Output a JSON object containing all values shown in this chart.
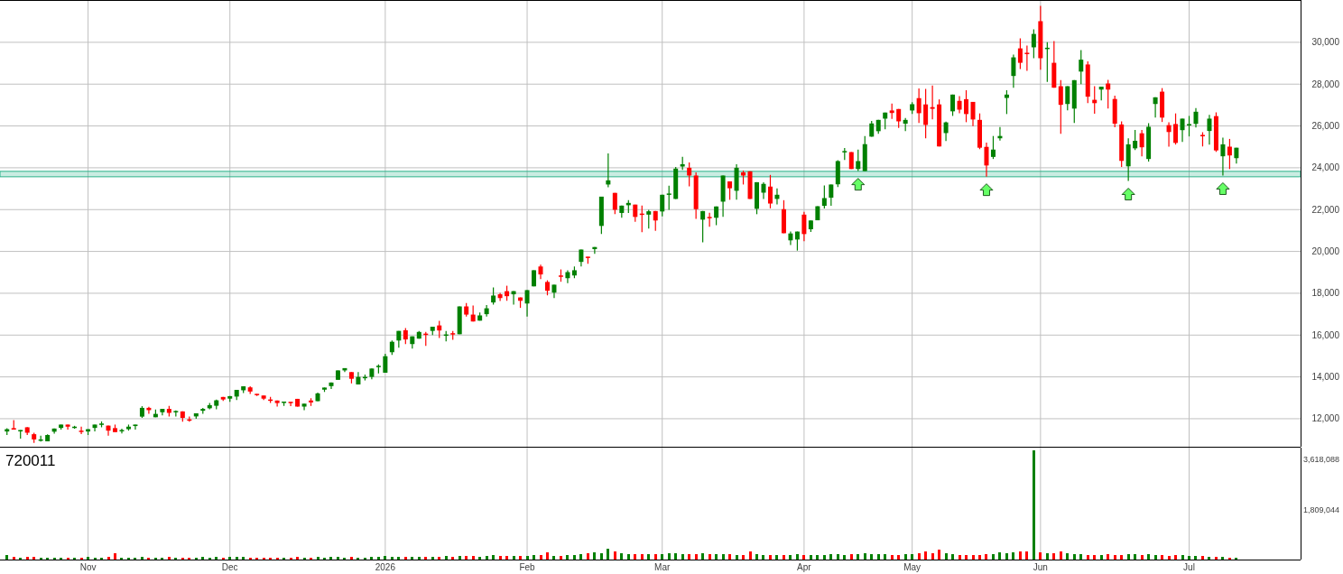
{
  "chart_data": [
    {
      "type": "candlestick",
      "grid": "y",
      "tick_labels": "y",
      "categories": [
        null,
        null,
        null,
        null,
        null,
        null,
        null,
        null,
        null,
        null,
        null,
        null,
        null,
        null,
        null,
        null,
        null,
        null,
        null,
        null,
        null,
        null,
        null,
        null,
        null,
        null,
        null,
        null,
        null,
        null,
        null,
        null,
        null,
        null,
        null,
        null,
        null,
        null,
        null,
        null,
        null,
        null,
        null,
        null,
        null,
        null,
        null,
        null,
        null,
        null,
        null,
        null,
        null,
        null,
        null,
        null,
        null,
        null,
        null,
        null,
        null,
        null,
        null,
        null,
        null,
        null,
        null,
        null,
        null,
        null,
        null,
        null,
        null,
        null,
        null,
        null,
        null,
        null,
        null,
        null,
        null,
        null,
        null,
        null,
        null,
        null,
        null,
        null,
        null,
        null,
        null,
        null,
        null,
        null,
        null,
        null,
        null,
        null,
        null,
        null,
        null,
        null,
        null,
        null,
        null,
        null,
        null,
        null,
        null,
        null,
        null,
        null,
        null,
        null,
        null,
        null,
        null,
        null,
        null,
        null,
        null,
        null,
        null,
        null,
        null,
        null,
        null,
        null,
        null,
        null,
        null,
        null,
        null,
        null,
        null,
        null,
        null,
        null,
        null,
        null,
        null,
        null,
        null,
        null,
        null,
        null,
        null,
        null,
        null,
        null,
        null,
        null,
        null,
        null,
        null,
        null,
        null,
        null,
        null,
        null,
        null,
        null,
        null,
        null,
        null,
        null,
        null,
        null,
        null,
        null,
        null,
        null,
        null,
        null,
        null,
        null,
        null,
        null,
        null,
        null,
        null,
        null,
        null,
        null,
        null,
        null,
        null,
        null,
        null,
        null,
        null,
        null
      ],
      "ohlc": [
        [
          11390,
          11550,
          11220,
          11500
        ],
        [
          11550,
          11930,
          11480,
          11480
        ],
        [
          11450,
          11460,
          11050,
          11460
        ],
        [
          11590,
          11600,
          11220,
          11330
        ],
        [
          11260,
          11330,
          10840,
          11010
        ],
        [
          10970,
          11190,
          10910,
          11010
        ],
        [
          10920,
          11250,
          10920,
          11220
        ],
        [
          11380,
          11530,
          11290,
          11530
        ],
        [
          11560,
          11720,
          11480,
          11720
        ],
        [
          11720,
          11720,
          11480,
          11620
        ],
        [
          11570,
          11660,
          11520,
          11620
        ],
        [
          11430,
          11620,
          11260,
          11400
        ],
        [
          11390,
          11500,
          11220,
          11500
        ],
        [
          11560,
          11720,
          11390,
          11720
        ],
        [
          11740,
          11870,
          11590,
          11770
        ],
        [
          11670,
          11670,
          11190,
          11430
        ],
        [
          11550,
          11720,
          11360,
          11360
        ],
        [
          11430,
          11520,
          11300,
          11460
        ],
        [
          11500,
          11720,
          11430,
          11620
        ],
        [
          11650,
          11720,
          11480,
          11720
        ],
        [
          12100,
          12600,
          12040,
          12520
        ],
        [
          12520,
          12570,
          12240,
          12410
        ],
        [
          12070,
          12440,
          12070,
          12230
        ],
        [
          12310,
          12470,
          12160,
          12470
        ],
        [
          12470,
          12610,
          12110,
          12280
        ],
        [
          12340,
          12400,
          12110,
          12370
        ],
        [
          12350,
          12350,
          11860,
          12040
        ],
        [
          11970,
          12110,
          11860,
          11940
        ],
        [
          12110,
          12260,
          12000,
          12260
        ],
        [
          12380,
          12520,
          12240,
          12470
        ],
        [
          12500,
          12750,
          12450,
          12650
        ],
        [
          12620,
          12920,
          12450,
          12880
        ],
        [
          13040,
          13040,
          12850,
          12920
        ],
        [
          12960,
          13090,
          12810,
          13080
        ],
        [
          13060,
          13380,
          12890,
          13380
        ],
        [
          13360,
          13550,
          13230,
          13550
        ],
        [
          13500,
          13550,
          13180,
          13300
        ],
        [
          13190,
          13190,
          13090,
          13160
        ],
        [
          13110,
          13110,
          12890,
          12960
        ],
        [
          12920,
          13040,
          12750,
          12890
        ],
        [
          12870,
          12870,
          12580,
          12750
        ],
        [
          12780,
          12820,
          12610,
          12820
        ],
        [
          12810,
          12810,
          12600,
          12780
        ],
        [
          12950,
          12950,
          12580,
          12580
        ],
        [
          12580,
          12720,
          12410,
          12720
        ],
        [
          12870,
          12980,
          12610,
          12780
        ],
        [
          12840,
          13250,
          12840,
          13210
        ],
        [
          13390,
          13490,
          13280,
          13490
        ],
        [
          13560,
          13730,
          13420,
          13730
        ],
        [
          13860,
          14310,
          13860,
          14310
        ],
        [
          14310,
          14420,
          14230,
          14420
        ],
        [
          14230,
          14230,
          13690,
          13910
        ],
        [
          13640,
          14230,
          13640,
          14000
        ],
        [
          13940,
          14110,
          13830,
          14000
        ],
        [
          14000,
          14400,
          13890,
          14400
        ],
        [
          14500,
          14600,
          14170,
          14530
        ],
        [
          14200,
          15110,
          14200,
          14990
        ],
        [
          15180,
          15740,
          15050,
          15680
        ],
        [
          15740,
          16200,
          15400,
          16200
        ],
        [
          16230,
          16330,
          15570,
          15790
        ],
        [
          15570,
          15940,
          15350,
          15940
        ],
        [
          15830,
          16200,
          15830,
          16150
        ],
        [
          16070,
          16150,
          15480,
          16040
        ],
        [
          16200,
          16400,
          16000,
          16400
        ],
        [
          16460,
          16680,
          15860,
          16220
        ],
        [
          16000,
          16200,
          15700,
          16030
        ],
        [
          16090,
          16200,
          15770,
          16060
        ],
        [
          16040,
          17370,
          16040,
          17370
        ],
        [
          17370,
          17530,
          16890,
          16980
        ],
        [
          16980,
          17410,
          16650,
          16650
        ],
        [
          16690,
          17080,
          16690,
          16940
        ],
        [
          17000,
          17440,
          16890,
          17280
        ],
        [
          17560,
          18280,
          17460,
          17890
        ],
        [
          17950,
          18020,
          17630,
          17770
        ],
        [
          18100,
          18360,
          17640,
          17860
        ],
        [
          17950,
          18100,
          17460,
          18100
        ],
        [
          17800,
          17800,
          17300,
          17640
        ],
        [
          17510,
          18150,
          16890,
          18150
        ],
        [
          18330,
          19100,
          18330,
          19100
        ],
        [
          19280,
          19370,
          18680,
          18900
        ],
        [
          18540,
          18620,
          17900,
          18120
        ],
        [
          18030,
          18410,
          17770,
          18410
        ],
        [
          18850,
          19140,
          18550,
          18820
        ],
        [
          18720,
          19100,
          18480,
          19010
        ],
        [
          18850,
          19280,
          18720,
          19100
        ],
        [
          19500,
          20090,
          19280,
          20090
        ],
        [
          19750,
          19750,
          19410,
          19720
        ],
        [
          20110,
          20210,
          19890,
          20210
        ],
        [
          21220,
          22620,
          20830,
          22620
        ],
        [
          23200,
          24690,
          23070,
          23400
        ],
        [
          22800,
          22800,
          21780,
          21990
        ],
        [
          21840,
          22190,
          21610,
          22190
        ],
        [
          22210,
          22450,
          21840,
          22320
        ],
        [
          22240,
          22240,
          21420,
          21650
        ],
        [
          21810,
          22190,
          20920,
          21780
        ],
        [
          21760,
          21990,
          21090,
          21920
        ],
        [
          21930,
          21930,
          20990,
          21480
        ],
        [
          21910,
          22710,
          21680,
          22710
        ],
        [
          22740,
          23140,
          21990,
          22770
        ],
        [
          22510,
          24040,
          22510,
          23960
        ],
        [
          24060,
          24520,
          23900,
          24170
        ],
        [
          24000,
          24260,
          23110,
          23630
        ],
        [
          23630,
          23780,
          21560,
          22020
        ],
        [
          21520,
          21930,
          20430,
          21930
        ],
        [
          21650,
          21850,
          21180,
          21620
        ],
        [
          21610,
          22150,
          21250,
          22150
        ],
        [
          22380,
          23630,
          21650,
          23630
        ],
        [
          23350,
          23350,
          22470,
          23020
        ],
        [
          22900,
          24170,
          22470,
          24000
        ],
        [
          23780,
          23870,
          23200,
          23630
        ],
        [
          23830,
          23830,
          22510,
          22510
        ],
        [
          22040,
          23310,
          21780,
          23310
        ],
        [
          22810,
          23310,
          22510,
          23230
        ],
        [
          23100,
          23660,
          22060,
          22290
        ],
        [
          22510,
          23010,
          22250,
          22710
        ],
        [
          22020,
          22450,
          20870,
          20870
        ],
        [
          20530,
          20950,
          20310,
          20860
        ],
        [
          20570,
          20950,
          20040,
          20950
        ],
        [
          21760,
          21890,
          20490,
          20830
        ],
        [
          21060,
          21480,
          20930,
          21480
        ],
        [
          21490,
          22160,
          21490,
          22160
        ],
        [
          22180,
          23150,
          22050,
          22550
        ],
        [
          22570,
          23200,
          22180,
          23200
        ],
        [
          23210,
          24360,
          23080,
          24320
        ],
        [
          24770,
          24950,
          24370,
          24800
        ],
        [
          24750,
          24750,
          23940,
          23940
        ],
        [
          23940,
          24870,
          23840,
          24320
        ],
        [
          23840,
          25520,
          23840,
          25130
        ],
        [
          25490,
          26240,
          25490,
          26120
        ],
        [
          25750,
          26290,
          25620,
          26290
        ],
        [
          26350,
          26640,
          25840,
          26640
        ],
        [
          26740,
          27070,
          26340,
          26620
        ],
        [
          26810,
          26810,
          25910,
          26220
        ],
        [
          26110,
          26380,
          25750,
          26290
        ],
        [
          26740,
          27140,
          26570,
          27040
        ],
        [
          27330,
          27790,
          26140,
          26610
        ],
        [
          27030,
          27770,
          25410,
          26050
        ],
        [
          26900,
          27930,
          26320,
          26820
        ],
        [
          27030,
          27270,
          25020,
          25020
        ],
        [
          25660,
          26210,
          25280,
          26170
        ],
        [
          26700,
          27500,
          26480,
          27500
        ],
        [
          27200,
          27430,
          26610,
          26780
        ],
        [
          27280,
          27710,
          26180,
          26570
        ],
        [
          27150,
          27150,
          25990,
          26310
        ],
        [
          26290,
          26600,
          24890,
          24960
        ],
        [
          25000,
          25200,
          23580,
          24110
        ],
        [
          24520,
          25520,
          24420,
          24870
        ],
        [
          25410,
          25950,
          25300,
          25520
        ],
        [
          27340,
          27710,
          26570,
          27500
        ],
        [
          28390,
          29410,
          27830,
          29280
        ],
        [
          29710,
          30190,
          28720,
          29020
        ],
        [
          29500,
          29840,
          28630,
          29470
        ],
        [
          29760,
          30620,
          29240,
          30400
        ],
        [
          31010,
          31740,
          28690,
          29240
        ],
        [
          29710,
          30010,
          28110,
          29740
        ],
        [
          29020,
          30060,
          27830,
          27830
        ],
        [
          27900,
          28190,
          25630,
          27010
        ],
        [
          27050,
          27900,
          26750,
          27900
        ],
        [
          26830,
          28190,
          26140,
          28190
        ],
        [
          28600,
          29630,
          28000,
          29170
        ],
        [
          28940,
          29090,
          27090,
          27400
        ],
        [
          27250,
          27900,
          26580,
          27090
        ],
        [
          27740,
          27880,
          27220,
          27880
        ],
        [
          28030,
          28200,
          26830,
          27740
        ],
        [
          27290,
          27450,
          25940,
          26110
        ],
        [
          26070,
          26220,
          24040,
          24330
        ],
        [
          24070,
          25410,
          23370,
          25120
        ],
        [
          24930,
          25810,
          24850,
          25290
        ],
        [
          25650,
          25810,
          24550,
          24980
        ],
        [
          24420,
          26130,
          24300,
          25960
        ],
        [
          27050,
          27370,
          26400,
          27370
        ],
        [
          27640,
          27810,
          26190,
          26400
        ],
        [
          26040,
          26170,
          25010,
          25710
        ],
        [
          26090,
          26600,
          25110,
          25190
        ],
        [
          25800,
          26350,
          25240,
          26350
        ],
        [
          26060,
          26480,
          25500,
          26090
        ],
        [
          26100,
          26860,
          25930,
          26680
        ],
        [
          25570,
          25700,
          25020,
          25540
        ],
        [
          25760,
          26530,
          25110,
          26350
        ],
        [
          26470,
          26650,
          24760,
          24830
        ],
        [
          24550,
          25440,
          23630,
          25120
        ],
        [
          25010,
          25380,
          23940,
          24590
        ],
        [
          24460,
          24960,
          24200,
          24960
        ],
        null,
        null,
        null,
        null,
        null,
        null,
        null,
        null,
        null
      ],
      "ylim": [
        10660,
        31980
      ],
      "yticks": [
        {
          "value": 12000,
          "label": "12,000"
        },
        {
          "value": 14000,
          "label": "14,000"
        },
        {
          "value": 16000,
          "label": "16,000"
        },
        {
          "value": 18000,
          "label": "18,000"
        },
        {
          "value": 20000,
          "label": "20,000"
        },
        {
          "value": 22000,
          "label": "22,000"
        },
        {
          "value": 24000,
          "label": "24,000"
        },
        {
          "value": 26000,
          "label": "26,000"
        },
        {
          "value": 28000,
          "label": "28,000"
        },
        {
          "value": 30000,
          "label": "30,000"
        }
      ],
      "bands": [
        {
          "axis": "y",
          "from": 23570,
          "to": 23830,
          "color": "#2db38a"
        }
      ]
    },
    {
      "type": "bar",
      "title": "720011",
      "grid": "x",
      "categories": [
        null,
        null,
        null,
        null,
        null,
        null,
        null,
        null,
        null,
        null,
        null,
        null,
        "Nov",
        null,
        null,
        null,
        null,
        null,
        null,
        null,
        null,
        null,
        null,
        null,
        null,
        null,
        null,
        null,
        null,
        null,
        null,
        null,
        null,
        "Dec",
        null,
        null,
        null,
        null,
        null,
        null,
        null,
        null,
        null,
        null,
        null,
        null,
        null,
        null,
        null,
        null,
        null,
        null,
        null,
        null,
        null,
        null,
        "2026",
        null,
        null,
        null,
        null,
        null,
        null,
        null,
        null,
        null,
        null,
        null,
        null,
        null,
        null,
        null,
        null,
        null,
        null,
        null,
        null,
        "Feb",
        null,
        null,
        null,
        null,
        null,
        null,
        null,
        null,
        null,
        null,
        null,
        null,
        null,
        null,
        null,
        null,
        null,
        null,
        null,
        "Mar",
        null,
        null,
        null,
        null,
        null,
        null,
        null,
        null,
        null,
        null,
        null,
        null,
        null,
        null,
        null,
        null,
        null,
        null,
        null,
        null,
        "Apr",
        null,
        null,
        null,
        null,
        null,
        null,
        null,
        null,
        null,
        null,
        null,
        null,
        null,
        null,
        null,
        "May",
        null,
        null,
        null,
        null,
        null,
        null,
        null,
        null,
        null,
        null,
        null,
        null,
        null,
        null,
        null,
        null,
        null,
        null,
        "Jun",
        null,
        null,
        null,
        null,
        null,
        null,
        null,
        null,
        null,
        null,
        null,
        null,
        null,
        null,
        null,
        null,
        null,
        null,
        null,
        null,
        null,
        "Jul",
        null,
        null,
        null,
        null,
        null,
        null,
        null,
        null,
        null,
        null,
        null,
        null,
        null,
        null,
        null,
        null
      ],
      "values": [
        150000,
        90000,
        80000,
        90000,
        100000,
        80000,
        70000,
        80000,
        70000,
        80000,
        70000,
        80000,
        90000,
        80000,
        80000,
        90000,
        230000,
        80000,
        70000,
        80000,
        90000,
        80000,
        70000,
        80000,
        90000,
        80000,
        80000,
        70000,
        80000,
        90000,
        80000,
        90000,
        80000,
        90000,
        100000,
        90000,
        80000,
        80000,
        70000,
        80000,
        70000,
        80000,
        70000,
        90000,
        80000,
        70000,
        90000,
        80000,
        90000,
        100000,
        80000,
        90000,
        80000,
        70000,
        90000,
        100000,
        120000,
        110000,
        100000,
        110000,
        100000,
        90000,
        100000,
        110000,
        100000,
        120000,
        100000,
        130000,
        120000,
        140000,
        110000,
        120000,
        150000,
        130000,
        140000,
        130000,
        120000,
        140000,
        150000,
        160000,
        250000,
        140000,
        130000,
        150000,
        160000,
        190000,
        230000,
        260000,
        240000,
        380000,
        280000,
        220000,
        200000,
        190000,
        180000,
        200000,
        190000,
        210000,
        220000,
        240000,
        200000,
        190000,
        180000,
        230000,
        200000,
        190000,
        210000,
        180000,
        170000,
        160000,
        300000,
        180000,
        170000,
        160000,
        150000,
        170000,
        160000,
        180000,
        170000,
        150000,
        160000,
        170000,
        180000,
        200000,
        170000,
        190000,
        210000,
        230000,
        200000,
        190000,
        180000,
        170000,
        160000,
        190000,
        200000,
        240000,
        300000,
        230000,
        370000,
        220000,
        180000,
        160000,
        170000,
        150000,
        170000,
        180000,
        200000,
        260000,
        240000,
        250000,
        300000,
        280000,
        3950000,
        260000,
        240000,
        230000,
        290000,
        220000,
        200000,
        180000,
        160000,
        170000,
        150000,
        180000,
        160000,
        170000,
        190000,
        200000,
        170000,
        180000,
        160000,
        150000,
        140000,
        160000,
        150000,
        140000,
        130000,
        120000,
        110000,
        110000,
        90000,
        80000,
        70000,
        null,
        null,
        null,
        null,
        null,
        null,
        null,
        null,
        null
      ],
      "ylim": [
        0,
        4000000
      ],
      "yticks": [
        {
          "value": 1809044,
          "label": "1,809,044"
        },
        {
          "value": 3618088,
          "label": "3,618,088"
        }
      ]
    }
  ]
}
